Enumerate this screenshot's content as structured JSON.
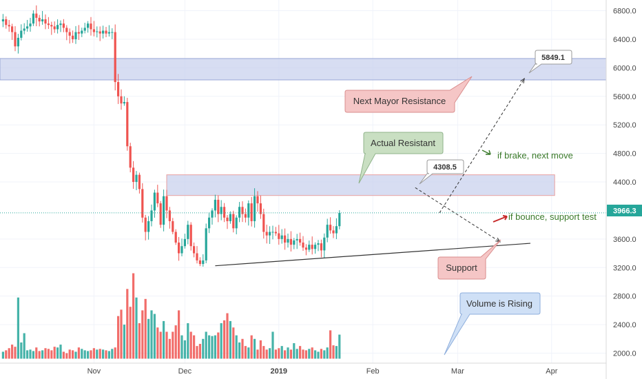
{
  "chart_data": {
    "type": "candlestick",
    "price_axis": {
      "ticks": [
        "6800.0",
        "6400.0",
        "6000.0",
        "5600.0",
        "5200.0",
        "4800.0",
        "4400.0",
        "3600.0",
        "3200.0",
        "2800.0",
        "2400.0",
        "2000.0"
      ],
      "tick_values": [
        6800,
        6400,
        6000,
        5600,
        5200,
        4800,
        4400,
        3600,
        3200,
        2800,
        2400,
        2000
      ],
      "ylim": [
        1860,
        6950
      ],
      "current_price_label": "3966.3",
      "current_price": 3966.3
    },
    "time_axis": {
      "labels": [
        "Nov",
        "Dec",
        "2019",
        "Feb",
        "Mar",
        "Apr"
      ],
      "label_days": [
        31,
        61,
        92,
        123,
        151,
        182
      ],
      "xlim_days": [
        0,
        200
      ],
      "bold_labels": [
        "2019"
      ]
    },
    "price_action": {
      "start_day": 0,
      "waypoints": [
        [
          6650,
          6680,
          6600,
          6580,
          6500,
          6300,
          6420,
          6520,
          6550,
          6580,
          6620,
          6760,
          6700,
          6650,
          6680,
          6620
        ],
        [
          6600,
          6580,
          6540,
          6600,
          6620,
          6560,
          6500,
          6450,
          6400,
          6500,
          6480,
          6520,
          6560,
          6620,
          6540,
          6500
        ],
        [
          6510,
          6480,
          6520,
          6480,
          6500,
          6500,
          5800,
          5600,
          5500,
          5520,
          4900,
          4600,
          4400,
          4500,
          4300,
          3900
        ],
        [
          3700,
          3850,
          4000,
          4250,
          4100,
          3800,
          4200,
          4000,
          3850,
          3700,
          3550,
          3400,
          3500,
          3600,
          3800,
          3500
        ],
        [
          3400,
          3300,
          3250,
          3300,
          3750,
          3900,
          4000,
          4150,
          3950,
          4050,
          3900,
          3850,
          3950,
          3750,
          3900,
          4050
        ],
        [
          3950,
          3900,
          4100,
          3850,
          4200,
          4100,
          3950,
          3700,
          3650,
          3700,
          3700,
          3680,
          3600,
          3650,
          3550,
          3600
        ],
        [
          3520,
          3580,
          3600,
          3550,
          3480,
          3450,
          3520,
          3460,
          3520,
          3540,
          3440,
          3620,
          3800,
          3720,
          3680,
          3780
        ],
        [
          3966
        ]
      ],
      "volume": [
        [
          2020,
          2040,
          2070,
          2120,
          2090,
          2780,
          2150,
          2280,
          2040,
          2050,
          2030,
          2080,
          2030,
          2040,
          2070,
          2060
        ],
        [
          2040,
          2090,
          2080,
          2120,
          2020,
          2000,
          2050,
          2040,
          2020,
          2080,
          2060,
          2040,
          2030,
          2040,
          2070,
          2050
        ],
        [
          2060,
          2050,
          2040,
          2030,
          2060,
          2080,
          2520,
          2610,
          2400,
          2900,
          2650,
          3120,
          2780,
          2420,
          2600,
          2760
        ],
        [
          2480,
          2600,
          2550,
          2360,
          2300,
          2450,
          2300,
          2200,
          2300,
          2390,
          2600,
          2250,
          2180,
          2420,
          2300,
          2250
        ],
        [
          2100,
          2130,
          2200,
          2300,
          2250,
          2240,
          2250,
          2290,
          2420,
          2460,
          2560,
          2450,
          2360,
          2250,
          2150,
          2200
        ],
        [
          2100,
          2080,
          2250,
          2200,
          2050,
          2180,
          2100,
          2050,
          2070,
          2300,
          2050,
          2070,
          2100,
          2040,
          2080,
          2050
        ],
        [
          2140,
          2060,
          2100,
          2050,
          2040,
          2060,
          2080,
          2040,
          2020,
          2060,
          2040,
          2080,
          2320,
          2110,
          2100,
          2260
        ],
        []
      ],
      "bull_color": "#26a69a",
      "bear_color": "#ef5350"
    },
    "resistance_zones": [
      {
        "name": "upper",
        "from_price": 5830,
        "to_price": 6130,
        "from_day": 0,
        "to_day": 200
      },
      {
        "name": "actual",
        "from_price": 4210,
        "to_price": 4500,
        "from_day": 55,
        "to_day": 183
      }
    ],
    "support_line": {
      "from": [
        71,
        3225
      ],
      "to": [
        175,
        3540
      ]
    },
    "projections": [
      {
        "from": [
          145,
          3966
        ],
        "to": [
          173,
          5849
        ],
        "label": "5849.1"
      },
      {
        "from": [
          137,
          4320
        ],
        "to": [
          165,
          3560
        ],
        "label": "4308.5"
      }
    ],
    "annotations": [
      {
        "text": "Next Mayor Resistance",
        "bg": "#f5c6c6",
        "border": "#d98c8c"
      },
      {
        "text": "Actual Resistant",
        "bg": "#c9dfc2",
        "border": "#8fb38a"
      },
      {
        "text": "Support",
        "bg": "#f5c6c6",
        "border": "#d98c8c"
      },
      {
        "text": "Volume is Rising",
        "bg": "#cfe0f6",
        "border": "#8eaedc"
      }
    ],
    "notes": [
      {
        "text": "if brake, next move",
        "color": "#3a7a2a"
      },
      {
        "text": "if bounce, support test",
        "color": "#3a7a2a"
      }
    ],
    "colors": {
      "zone_fill": "#c9d2ee",
      "zone_stroke": "#9aa8d6",
      "zone2_stroke": "#e8a0a0",
      "current_line": "#26a69a",
      "axis_text": "#444444"
    }
  }
}
